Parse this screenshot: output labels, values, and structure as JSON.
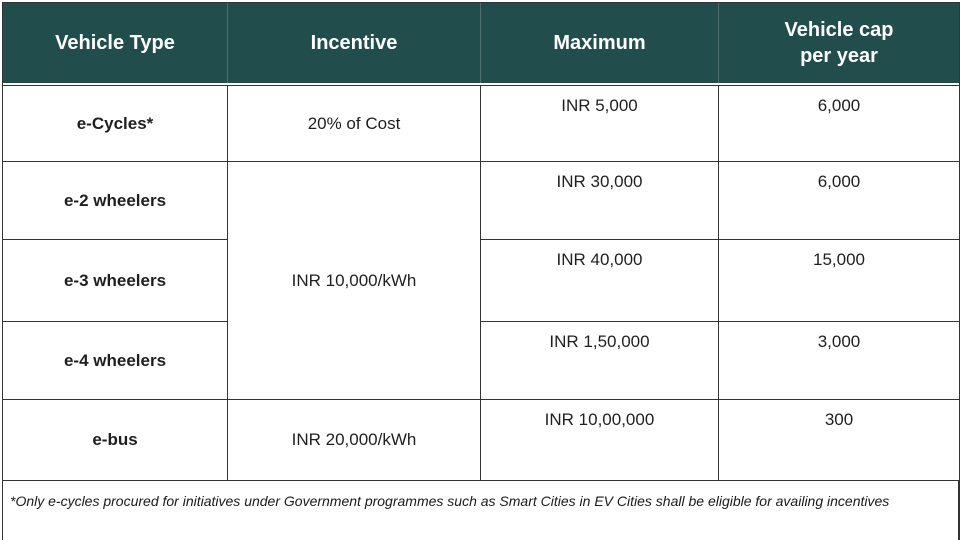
{
  "colors": {
    "header_bg": "#214e4c",
    "header_text": "#ffffff",
    "border": "#333333",
    "header_divider": "#4d6f6c",
    "body_text": "#1f1f1f"
  },
  "chart_data": {
    "type": "table",
    "columns": [
      "Vehicle Type",
      "Incentive",
      "Maximum",
      "Vehicle cap\nper year"
    ],
    "rows": [
      {
        "vehicle_type": "e-Cycles*",
        "incentive": "20% of Cost",
        "maximum": "INR 5,000",
        "vehicle_cap_per_year": "6,000"
      },
      {
        "vehicle_type": "e-2 wheelers",
        "incentive": "INR 10,000/kWh",
        "maximum": "INR 30,000",
        "vehicle_cap_per_year": "6,000"
      },
      {
        "vehicle_type": "e-3 wheelers",
        "incentive": "INR 10,000/kWh",
        "maximum": "INR 40,000",
        "vehicle_cap_per_year": "15,000"
      },
      {
        "vehicle_type": "e-4 wheelers",
        "incentive": "INR 10,000/kWh",
        "maximum": "INR 1,50,000",
        "vehicle_cap_per_year": "3,000"
      },
      {
        "vehicle_type": "e-bus",
        "incentive": "INR 20,000/kWh",
        "maximum": "INR 10,00,000",
        "vehicle_cap_per_year": "300"
      }
    ],
    "merged_incentive": {
      "value": "INR 10,000/kWh",
      "applies_to": [
        "e-2 wheelers",
        "e-3 wheelers",
        "e-4 wheelers"
      ]
    },
    "footnote": "*Only e-cycles procured for initiatives under Government programmes such as Smart Cities in EV Cities shall be eligible for availing incentives"
  }
}
